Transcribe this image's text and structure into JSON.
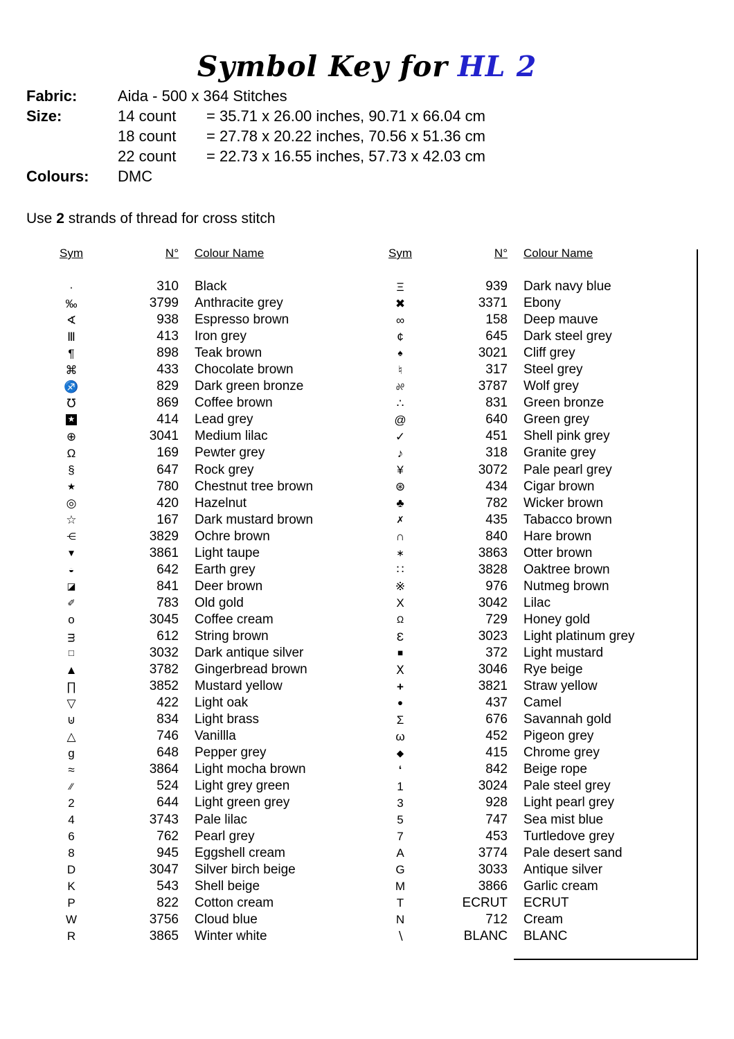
{
  "title": {
    "prefix": "Symbol Key for",
    "name": "HL 2"
  },
  "colors": {
    "accent_blue": "#2222cc",
    "text": "#000000"
  },
  "info": {
    "fabric_label": "Fabric:",
    "fabric_value": "Aida -  500 x 364 Stitches",
    "size_label": "Size:",
    "sizes": [
      {
        "count": "14 count",
        "dims": "= 35.71 x 26.00 inches, 90.71 x 66.04 cm"
      },
      {
        "count": "18 count",
        "dims": "= 27.78 x 20.22 inches, 70.56 x 51.36 cm"
      },
      {
        "count": "22 count",
        "dims": "= 22.73 x 16.55 inches, 57.73 x 42.03 cm"
      }
    ],
    "colours_label": "Colours:",
    "colours_value": "DMC"
  },
  "strands_note": {
    "pre": "Use ",
    "strands": "2",
    "post": " strands of thread for cross stitch"
  },
  "table": {
    "headers": {
      "sym": "Sym",
      "num": "N°",
      "name": "Colour Name"
    },
    "left_rows": [
      {
        "sym": "·",
        "num": "310",
        "name": "Black"
      },
      {
        "sym": "‰",
        "num": "3799",
        "name": "Anthracite grey"
      },
      {
        "sym": "∢",
        "num": "938",
        "name": "Espresso brown"
      },
      {
        "sym": "Ⅲ",
        "num": "413",
        "name": "Iron grey"
      },
      {
        "sym": "¶",
        "num": "898",
        "name": "Teak brown"
      },
      {
        "sym": "⌘",
        "num": "433",
        "name": "Chocolate brown"
      },
      {
        "sym": "♐",
        "num": "829",
        "name": "Dark green bronze"
      },
      {
        "sym": "℧",
        "num": "869",
        "name": "Coffee brown"
      },
      {
        "sym": "★",
        "num": "414",
        "name": "Lead grey",
        "style": "inv"
      },
      {
        "sym": "⊕",
        "num": "3041",
        "name": "Medium lilac"
      },
      {
        "sym": "Ω",
        "num": "169",
        "name": "Pewter grey"
      },
      {
        "sym": "§",
        "num": "647",
        "name": "Rock grey"
      },
      {
        "sym": "★",
        "num": "780",
        "name": "Chestnut tree brown",
        "style": "sm"
      },
      {
        "sym": "◎",
        "num": "420",
        "name": "Hazelnut"
      },
      {
        "sym": "☆",
        "num": "167",
        "name": "Dark mustard brown"
      },
      {
        "sym": "⋲",
        "num": "3829",
        "name": "Ochre brown",
        "style": "sm"
      },
      {
        "sym": "▼",
        "num": "3861",
        "name": "Light taupe",
        "style": "sm"
      },
      {
        "sym": "◒",
        "num": "642",
        "name": "Earth grey",
        "style": "sm"
      },
      {
        "sym": "◪",
        "num": "841",
        "name": "Deer brown",
        "style": "sm"
      },
      {
        "sym": "✐",
        "num": "783",
        "name": "Old gold",
        "style": "sm"
      },
      {
        "sym": "o",
        "num": "3045",
        "name": "Coffee cream"
      },
      {
        "sym": "ᴟ",
        "num": "612",
        "name": "String brown"
      },
      {
        "sym": "□",
        "num": "3032",
        "name": "Dark antique silver",
        "style": "sm"
      },
      {
        "sym": "▲",
        "num": "3782",
        "name": "Gingerbread brown"
      },
      {
        "sym": "∏",
        "num": "3852",
        "name": "Mustard yellow"
      },
      {
        "sym": "▽",
        "num": "422",
        "name": "Light oak"
      },
      {
        "sym": "⊍",
        "num": "834",
        "name": "Light brass"
      },
      {
        "sym": "△",
        "num": "746",
        "name": "Vanillla"
      },
      {
        "sym": "g",
        "num": "648",
        "name": "Pepper grey"
      },
      {
        "sym": "≈",
        "num": "3864",
        "name": "Light mocha brown"
      },
      {
        "sym": "∕∕",
        "num": "524",
        "name": "Light grey green",
        "style": "sm"
      },
      {
        "sym": "2",
        "num": "644",
        "name": "Light green grey"
      },
      {
        "sym": "4",
        "num": "3743",
        "name": "Pale lilac"
      },
      {
        "sym": "6",
        "num": "762",
        "name": "Pearl grey"
      },
      {
        "sym": "8",
        "num": "945",
        "name": "Eggshell cream"
      },
      {
        "sym": "D",
        "num": "3047",
        "name": "Silver birch beige"
      },
      {
        "sym": "K",
        "num": "543",
        "name": "Shell beige"
      },
      {
        "sym": "P",
        "num": "822",
        "name": "Cotton cream"
      },
      {
        "sym": "W",
        "num": "3756",
        "name": "Cloud blue"
      },
      {
        "sym": "R",
        "num": "3865",
        "name": "Winter white"
      }
    ],
    "right_rows": [
      {
        "sym": "Ξ",
        "num": "939",
        "name": "Dark navy blue"
      },
      {
        "sym": "✖",
        "num": "3371",
        "name": "Ebony"
      },
      {
        "sym": "∞",
        "num": "158",
        "name": "Deep mauve"
      },
      {
        "sym": "¢",
        "num": "645",
        "name": "Dark steel grey"
      },
      {
        "sym": "♠",
        "num": "3021",
        "name": "Cliff grey",
        "style": "sm"
      },
      {
        "sym": "♮",
        "num": "317",
        "name": "Steel grey"
      },
      {
        "sym": "%",
        "num": "3787",
        "name": "Wolf grey",
        "style": "flip sm"
      },
      {
        "sym": "∴",
        "num": "831",
        "name": "Green bronze"
      },
      {
        "sym": "@",
        "num": "640",
        "name": "Green grey"
      },
      {
        "sym": "✓",
        "num": "451",
        "name": "Shell pink grey"
      },
      {
        "sym": "♪",
        "num": "318",
        "name": "Granite grey"
      },
      {
        "sym": "¥",
        "num": "3072",
        "name": "Pale pearl grey"
      },
      {
        "sym": "⊛",
        "num": "434",
        "name": "Cigar brown"
      },
      {
        "sym": "♣",
        "num": "782",
        "name": "Wicker brown"
      },
      {
        "sym": "✗",
        "num": "435",
        "name": "Tabacco brown",
        "style": "sm"
      },
      {
        "sym": "∩",
        "num": "840",
        "name": "Hare brown"
      },
      {
        "sym": "∗",
        "num": "3863",
        "name": "Otter brown",
        "style": "sm"
      },
      {
        "sym": "∷",
        "num": "3828",
        "name": "Oaktree brown"
      },
      {
        "sym": "※",
        "num": "976",
        "name": "Nutmeg brown"
      },
      {
        "sym": "X",
        "num": "3042",
        "name": "Lilac"
      },
      {
        "sym": "Ω",
        "num": "729",
        "name": "Honey gold",
        "style": "sm"
      },
      {
        "sym": "Ɛ",
        "num": "3023",
        "name": "Light platinum grey"
      },
      {
        "sym": "■",
        "num": "372",
        "name": "Light mustard",
        "style": "sm"
      },
      {
        "sym": "Ⅹ",
        "num": "3046",
        "name": "Rye beige"
      },
      {
        "sym": "+",
        "num": "3821",
        "name": "Straw yellow",
        "style": "bold"
      },
      {
        "sym": "●",
        "num": "437",
        "name": "Camel",
        "style": "sm"
      },
      {
        "sym": "Σ",
        "num": "676",
        "name": "Savannah gold"
      },
      {
        "sym": "ω",
        "num": "452",
        "name": "Pigeon grey"
      },
      {
        "sym": "◆",
        "num": "415",
        "name": "Chrome grey",
        "style": "sm"
      },
      {
        "sym": "‘",
        "num": "842",
        "name": "Beige rope",
        "style": "bold"
      },
      {
        "sym": "1",
        "num": "3024",
        "name": "Pale steel grey"
      },
      {
        "sym": "3",
        "num": "928",
        "name": "Light pearl grey"
      },
      {
        "sym": "5",
        "num": "747",
        "name": "Sea mist blue"
      },
      {
        "sym": "7",
        "num": "453",
        "name": "Turtledove grey"
      },
      {
        "sym": "A",
        "num": "3774",
        "name": "Pale desert sand"
      },
      {
        "sym": "G",
        "num": "3033",
        "name": "Antique silver"
      },
      {
        "sym": "M",
        "num": "3866",
        "name": "Garlic cream"
      },
      {
        "sym": "T",
        "num": "ECRUT",
        "name": "ECRUT"
      },
      {
        "sym": "N",
        "num": "712",
        "name": "Cream"
      },
      {
        "sym": "∖",
        "num": "BLANC",
        "name": "BLANC"
      }
    ]
  }
}
